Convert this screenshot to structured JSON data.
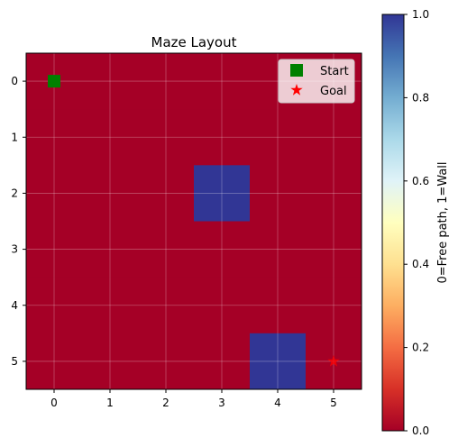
{
  "chart_data": {
    "type": "heatmap",
    "title": "Maze Layout",
    "x_ticks": [
      "0",
      "1",
      "2",
      "3",
      "4",
      "5"
    ],
    "y_ticks": [
      "0",
      "1",
      "2",
      "3",
      "4",
      "5"
    ],
    "grid": true,
    "cmap": "RdYlBu",
    "matrix": [
      [
        0,
        0,
        0,
        0,
        0,
        0
      ],
      [
        0,
        0,
        0,
        0,
        0,
        0
      ],
      [
        0,
        0,
        0,
        1,
        0,
        0
      ],
      [
        0,
        0,
        0,
        0,
        0,
        0
      ],
      [
        0,
        0,
        0,
        0,
        0,
        0
      ],
      [
        0,
        0,
        0,
        0,
        1,
        0
      ]
    ],
    "markers": [
      {
        "name": "Start",
        "shape": "square",
        "color": "#008000",
        "row": 0,
        "col": 0
      },
      {
        "name": "Goal",
        "shape": "star",
        "color": "#ff0000",
        "row": 5,
        "col": 5
      }
    ],
    "legend_placement": "top-right",
    "colorbar": {
      "label": "0=Free path, 1=Wall",
      "range": [
        0.0,
        1.0
      ],
      "ticks": [
        "0.0",
        "0.2",
        "0.4",
        "0.6",
        "0.8",
        "1.0"
      ],
      "tick_values": [
        0.0,
        0.2,
        0.4,
        0.6,
        0.8,
        1.0
      ],
      "low_color": "#a50026",
      "high_color": "#313695"
    }
  }
}
